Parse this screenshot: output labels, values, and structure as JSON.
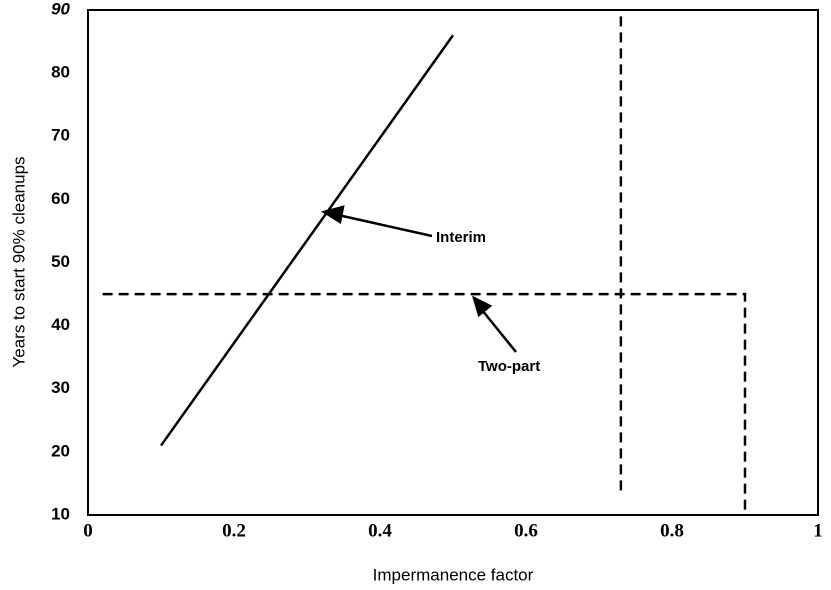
{
  "chart_data": {
    "type": "line",
    "xlabel": "Impermanence factor",
    "ylabel": "Years to start 90% cleanups",
    "xlim": [
      0,
      1
    ],
    "xticks": [
      0,
      0.2,
      0.4,
      0.6,
      0.8,
      1
    ],
    "ylim": [
      10,
      90
    ],
    "yticks": [
      10,
      20,
      30,
      40,
      50,
      60,
      70,
      80,
      90
    ],
    "grid": false,
    "series": [
      {
        "name": "Interim",
        "color": "#000000",
        "x": [
          0.1,
          0.5
        ],
        "values": [
          21,
          86
        ]
      },
      {
        "name": "Two-part",
        "color": "#000000",
        "x": [
          0.02,
          0.9,
          0.9
        ],
        "values": [
          45,
          45,
          10
        ]
      },
      {
        "color": "#000000",
        "x": [
          0.73,
          0.73
        ],
        "values": [
          89,
          13
        ]
      }
    ],
    "annotations": [
      "Interim",
      "Two-part"
    ]
  }
}
